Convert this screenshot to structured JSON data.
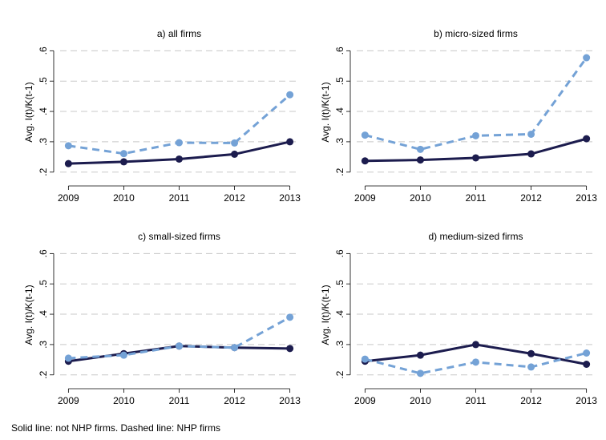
{
  "chart_data": [
    {
      "type": "line",
      "title": "a) all firms",
      "y_label": "Avg. I(t)/K(t-1)",
      "x": [
        2009,
        2010,
        2011,
        2012,
        2013
      ],
      "xlim": [
        2008.85,
        2013.15
      ],
      "xticks": [
        2009,
        2010,
        2011,
        2012,
        2013
      ],
      "ylim": [
        0.165,
        0.63
      ],
      "yticks": [
        {
          "value": 0.2,
          "label": ".2"
        },
        {
          "value": 0.3,
          "label": ".3"
        },
        {
          "value": 0.4,
          "label": ".4"
        },
        {
          "value": 0.5,
          "label": ".5"
        },
        {
          "value": 0.6,
          "label": ".6"
        }
      ],
      "grid": true,
      "series": [
        {
          "color": "#1c1c4e",
          "dashed": false,
          "values": [
            0.228,
            0.234,
            0.243,
            0.259,
            0.3
          ]
        },
        {
          "color": "#74a2d6",
          "dashed": true,
          "values": [
            0.287,
            0.261,
            0.297,
            0.296,
            0.455
          ]
        }
      ]
    },
    {
      "type": "line",
      "title": "b) micro-sized firms",
      "y_label": "Avg. I(t)/K(t-1)",
      "x": [
        2009,
        2010,
        2011,
        2012,
        2013
      ],
      "xlim": [
        2008.85,
        2013.15
      ],
      "xticks": [
        2009,
        2010,
        2011,
        2012,
        2013
      ],
      "ylim": [
        0.165,
        0.63
      ],
      "yticks": [
        {
          "value": 0.2,
          "label": ".2"
        },
        {
          "value": 0.3,
          "label": ".3"
        },
        {
          "value": 0.4,
          "label": ".4"
        },
        {
          "value": 0.5,
          "label": ".5"
        },
        {
          "value": 0.6,
          "label": ".6"
        }
      ],
      "grid": true,
      "series": [
        {
          "color": "#1c1c4e",
          "dashed": false,
          "values": [
            0.237,
            0.24,
            0.247,
            0.26,
            0.31
          ]
        },
        {
          "color": "#74a2d6",
          "dashed": true,
          "values": [
            0.322,
            0.275,
            0.32,
            0.325,
            0.577
          ]
        }
      ]
    },
    {
      "type": "line",
      "title": "c) small-sized firms",
      "y_label": "Avg. I(t)/K(t-1)",
      "x": [
        2009,
        2010,
        2011,
        2012,
        2013
      ],
      "xlim": [
        2008.85,
        2013.15
      ],
      "xticks": [
        2009,
        2010,
        2011,
        2012,
        2013
      ],
      "ylim": [
        0.165,
        0.63
      ],
      "yticks": [
        {
          "value": 0.2,
          "label": ".2"
        },
        {
          "value": 0.3,
          "label": ".3"
        },
        {
          "value": 0.4,
          "label": ".4"
        },
        {
          "value": 0.5,
          "label": ".5"
        },
        {
          "value": 0.6,
          "label": ".6"
        }
      ],
      "grid": true,
      "series": [
        {
          "color": "#1c1c4e",
          "dashed": false,
          "values": [
            0.245,
            0.27,
            0.295,
            0.29,
            0.287
          ]
        },
        {
          "color": "#74a2d6",
          "dashed": true,
          "values": [
            0.255,
            0.265,
            0.295,
            0.29,
            0.39
          ]
        }
      ]
    },
    {
      "type": "line",
      "title": "d) medium-sized firms",
      "y_label": "Avg. I(t)/K(t-1)",
      "x": [
        2009,
        2010,
        2011,
        2012,
        2013
      ],
      "xlim": [
        2008.85,
        2013.15
      ],
      "xticks": [
        2009,
        2010,
        2011,
        2012,
        2013
      ],
      "ylim": [
        0.165,
        0.63
      ],
      "yticks": [
        {
          "value": 0.2,
          "label": ".2"
        },
        {
          "value": 0.3,
          "label": ".3"
        },
        {
          "value": 0.4,
          "label": ".4"
        },
        {
          "value": 0.5,
          "label": ".5"
        },
        {
          "value": 0.6,
          "label": ".6"
        }
      ],
      "grid": true,
      "series": [
        {
          "color": "#1c1c4e",
          "dashed": false,
          "values": [
            0.245,
            0.265,
            0.3,
            0.27,
            0.235
          ]
        },
        {
          "color": "#74a2d6",
          "dashed": true,
          "values": [
            0.252,
            0.205,
            0.242,
            0.226,
            0.272
          ]
        }
      ]
    }
  ],
  "note": "Solid line: not NHP firms. Dashed line: NHP firms"
}
